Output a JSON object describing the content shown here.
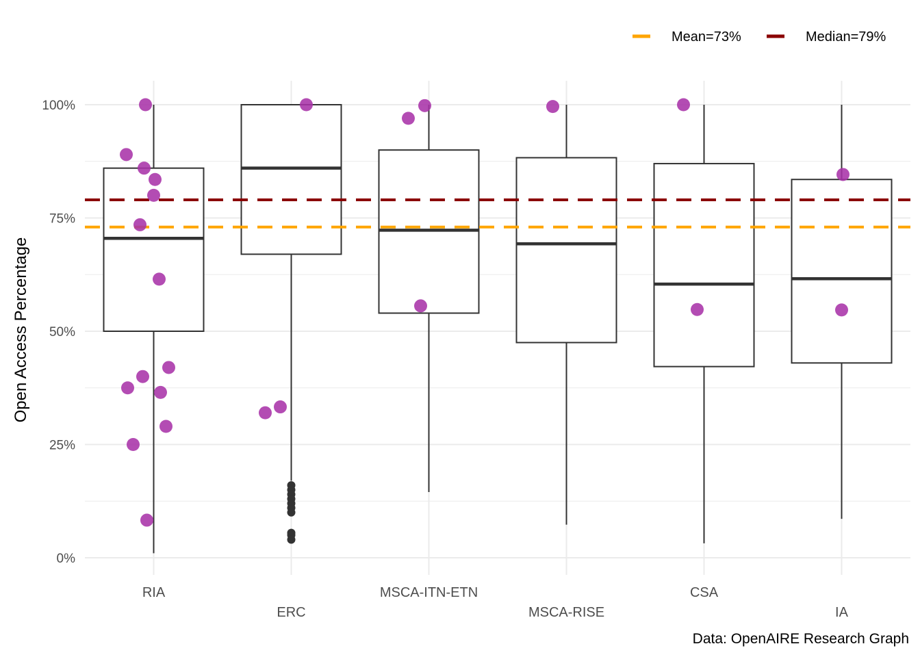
{
  "chart_data": {
    "type": "boxplot",
    "ylabel": "Open Access Percentage",
    "xlabel": "",
    "caption": "Data: OpenAIRE Research Graph",
    "ylim": [
      -4,
      105
    ],
    "yticks": [
      0,
      25,
      50,
      75,
      100
    ],
    "ytick_labels": [
      "0%",
      "25%",
      "50%",
      "75%",
      "100%"
    ],
    "grid": true,
    "legend_position": "top-right",
    "reference_lines": [
      {
        "name": "Mean=73%",
        "value": 73,
        "color": "#FFA500",
        "style": "dashed"
      },
      {
        "name": "Median=79%",
        "value": 79,
        "color": "#8B0000",
        "style": "dashed"
      }
    ],
    "categories": [
      "RIA",
      "ERC",
      "MSCA-ITN-ETN",
      "MSCA-RISE",
      "CSA",
      "IA"
    ],
    "boxes": [
      {
        "category": "RIA",
        "whisker_low": 1,
        "q1": 50,
        "median": 70.5,
        "q3": 86,
        "whisker_high": 100,
        "outliers": []
      },
      {
        "category": "ERC",
        "whisker_low": 17,
        "q1": 67,
        "median": 86,
        "q3": 100,
        "whisker_high": 100,
        "outliers": [
          16,
          15,
          14,
          13,
          12,
          11,
          10,
          5.5,
          5,
          4
        ]
      },
      {
        "category": "MSCA-ITN-ETN",
        "whisker_low": 14.5,
        "q1": 54,
        "median": 72.3,
        "q3": 90,
        "whisker_high": 100,
        "outliers": []
      },
      {
        "category": "MSCA-RISE",
        "whisker_low": 7.3,
        "q1": 47.5,
        "median": 69.3,
        "q3": 88.3,
        "whisker_high": 100,
        "outliers": []
      },
      {
        "category": "CSA",
        "whisker_low": 3.2,
        "q1": 42.2,
        "median": 60.4,
        "q3": 87,
        "whisker_high": 100,
        "outliers": []
      },
      {
        "category": "IA",
        "whisker_low": 8.6,
        "q1": 43,
        "median": 61.6,
        "q3": 83.5,
        "whisker_high": 100,
        "outliers": []
      }
    ],
    "points": [
      {
        "category": "RIA",
        "values": [
          100,
          89,
          86,
          83.5,
          80,
          73.5,
          61.5,
          42,
          40,
          37.5,
          36.5,
          29,
          25,
          8.3
        ]
      },
      {
        "category": "ERC",
        "values": [
          100,
          33.3,
          32
        ]
      },
      {
        "category": "MSCA-ITN-ETN",
        "values": [
          99.8,
          97,
          55.6
        ]
      },
      {
        "category": "MSCA-RISE",
        "values": [
          99.6
        ]
      },
      {
        "category": "CSA",
        "values": [
          100,
          54.8
        ]
      },
      {
        "category": "IA",
        "values": [
          84.6,
          54.7
        ]
      }
    ],
    "colors": {
      "points": "#A833A8",
      "box": "#333333",
      "grid": "#EBEBEB",
      "axis_text": "#4D4D4D"
    }
  }
}
